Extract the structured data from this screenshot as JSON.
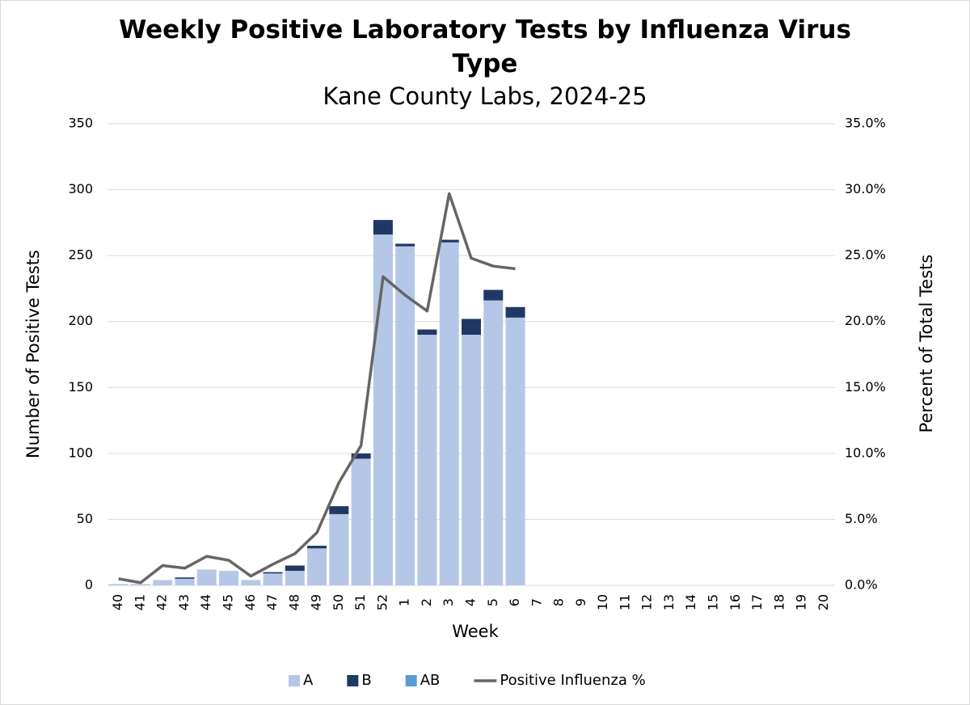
{
  "chart_data": {
    "type": "bar-line",
    "title": "Weekly Positive Laboratory Tests by Influenza Virus Type",
    "subtitle": "Kane County Labs, 2024-25",
    "xlabel": "Week",
    "ylabel": "Number of Positive Tests",
    "y2label": "Percent of Total Tests",
    "categories": [
      "40",
      "41",
      "42",
      "43",
      "44",
      "45",
      "46",
      "47",
      "48",
      "49",
      "50",
      "51",
      "52",
      "1",
      "2",
      "3",
      "4",
      "5",
      "6",
      "7",
      "8",
      "9",
      "10",
      "11",
      "12",
      "13",
      "14",
      "15",
      "16",
      "17",
      "18",
      "19",
      "20"
    ],
    "series": [
      {
        "name": "A",
        "type": "bar",
        "color": "#b4c7e7",
        "values": [
          1,
          1,
          4,
          5,
          12,
          11,
          4,
          9,
          11,
          28,
          54,
          96,
          266,
          257,
          190,
          260,
          190,
          216,
          203,
          null,
          null,
          null,
          null,
          null,
          null,
          null,
          null,
          null,
          null,
          null,
          null,
          null,
          null
        ]
      },
      {
        "name": "B",
        "type": "bar",
        "color": "#203864",
        "values": [
          0,
          0,
          0,
          1,
          0,
          0,
          0,
          1,
          4,
          2,
          6,
          4,
          11,
          2,
          4,
          2,
          12,
          8,
          8,
          null,
          null,
          null,
          null,
          null,
          null,
          null,
          null,
          null,
          null,
          null,
          null,
          null,
          null
        ]
      },
      {
        "name": "AB",
        "type": "bar",
        "color": "#5b9bd5",
        "values": [
          0,
          0,
          0,
          0,
          0,
          0,
          0,
          0,
          0,
          0,
          0,
          0,
          0,
          0,
          0,
          0,
          0,
          0,
          0,
          null,
          null,
          null,
          null,
          null,
          null,
          null,
          null,
          null,
          null,
          null,
          null,
          null,
          null
        ]
      },
      {
        "name": "Positive Influenza %",
        "type": "line",
        "axis": "y2",
        "color": "#666666",
        "values": [
          0.5,
          0.2,
          1.5,
          1.3,
          2.2,
          1.9,
          0.7,
          1.6,
          2.4,
          4.0,
          7.8,
          10.6,
          23.4,
          22.0,
          20.8,
          29.7,
          24.8,
          24.2,
          24.0,
          null,
          null,
          null,
          null,
          null,
          null,
          null,
          null,
          null,
          null,
          null,
          null,
          null,
          null
        ]
      }
    ],
    "ylim": [
      0,
      350
    ],
    "yticks": [
      0,
      50,
      100,
      150,
      200,
      250,
      300,
      350
    ],
    "y2lim": [
      0,
      35
    ],
    "y2ticks": [
      {
        "value": 0,
        "label": "0.0%"
      },
      {
        "value": 5,
        "label": "5.0%"
      },
      {
        "value": 10,
        "label": "10.0%"
      },
      {
        "value": 15,
        "label": "15.0%"
      },
      {
        "value": 20,
        "label": "20.0%"
      },
      {
        "value": 25,
        "label": "25.0%"
      },
      {
        "value": 30,
        "label": "30.0%"
      },
      {
        "value": 35,
        "label": "35.0%"
      }
    ],
    "grid": true,
    "legend": "bottom"
  }
}
